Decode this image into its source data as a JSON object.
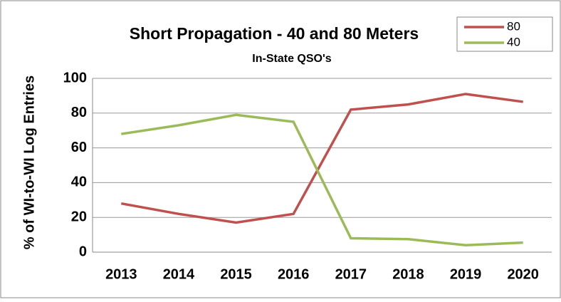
{
  "chart_data": {
    "type": "line",
    "title": "Short Propagation  - 40 and 80 Meters",
    "subtitle": "In-State QSO's",
    "y_label": "% of WI-to-WI  Log Entries",
    "categories": [
      "2013",
      "2014",
      "2015",
      "2016",
      "2017",
      "2018",
      "2019",
      "2020"
    ],
    "series": [
      {
        "name": "80",
        "color": "#c0504d",
        "values": [
          28,
          22,
          17,
          22,
          82,
          85,
          91,
          86.5
        ]
      },
      {
        "name": "40",
        "color": "#9bbb59",
        "values": [
          68,
          73,
          79,
          75,
          8,
          7.5,
          4,
          5.5
        ]
      }
    ],
    "ylim": [
      0,
      100
    ],
    "yticks": [
      0,
      20,
      40,
      60,
      80,
      100
    ],
    "grid": true,
    "legend": "top-right"
  }
}
